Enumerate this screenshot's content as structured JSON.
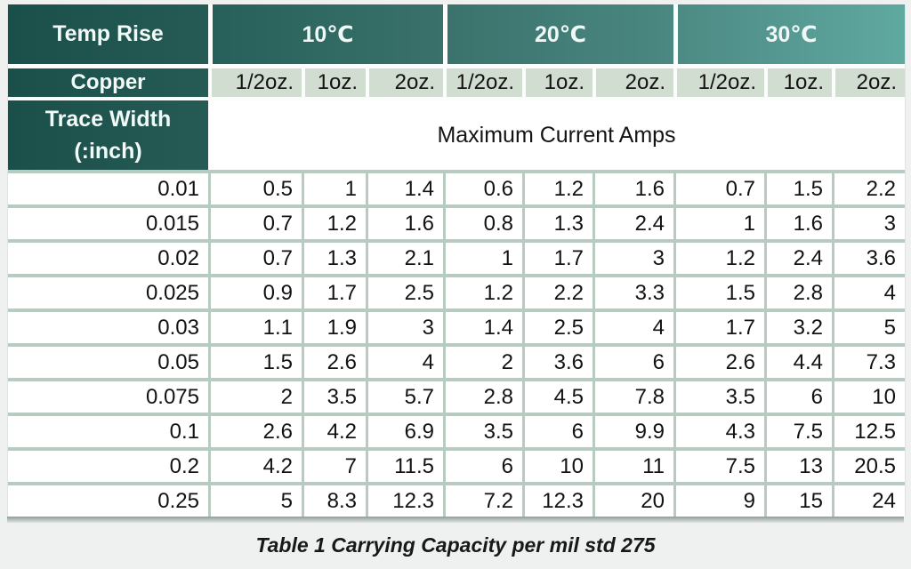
{
  "table": {
    "header": {
      "temp_rise_label": "Temp Rise",
      "temp_columns": [
        "10℃",
        "20℃",
        "30℃"
      ],
      "copper_label": "Copper",
      "copper_weights": [
        "1/2oz.",
        "1oz.",
        "2oz.",
        "1/2oz.",
        "1oz.",
        "2oz.",
        "1/2oz.",
        "1oz.",
        "2oz."
      ],
      "trace_width_label_line1": "Trace Width",
      "trace_width_label_line2": "(:inch)",
      "amps_header": "Maximum Current Amps"
    },
    "rows": [
      {
        "trace_width": "0.01",
        "values": [
          "0.5",
          "1",
          "1.4",
          "0.6",
          "1.2",
          "1.6",
          "0.7",
          "1.5",
          "2.2"
        ]
      },
      {
        "trace_width": "0.015",
        "values": [
          "0.7",
          "1.2",
          "1.6",
          "0.8",
          "1.3",
          "2.4",
          "1",
          "1.6",
          "3"
        ]
      },
      {
        "trace_width": "0.02",
        "values": [
          "0.7",
          "1.3",
          "2.1",
          "1",
          "1.7",
          "3",
          "1.2",
          "2.4",
          "3.6"
        ]
      },
      {
        "trace_width": "0.025",
        "values": [
          "0.9",
          "1.7",
          "2.5",
          "1.2",
          "2.2",
          "3.3",
          "1.5",
          "2.8",
          "4"
        ]
      },
      {
        "trace_width": "0.03",
        "values": [
          "1.1",
          "1.9",
          "3",
          "1.4",
          "2.5",
          "4",
          "1.7",
          "3.2",
          "5"
        ]
      },
      {
        "trace_width": "0.05",
        "values": [
          "1.5",
          "2.6",
          "4",
          "2",
          "3.6",
          "6",
          "2.6",
          "4.4",
          "7.3"
        ]
      },
      {
        "trace_width": "0.075",
        "values": [
          "2",
          "3.5",
          "5.7",
          "2.8",
          "4.5",
          "7.8",
          "3.5",
          "6",
          "10"
        ]
      },
      {
        "trace_width": "0.1",
        "values": [
          "2.6",
          "4.2",
          "6.9",
          "3.5",
          "6",
          "9.9",
          "4.3",
          "7.5",
          "12.5"
        ]
      },
      {
        "trace_width": "0.2",
        "values": [
          "4.2",
          "7",
          "11.5",
          "6",
          "10",
          "11",
          "7.5",
          "13",
          "20.5"
        ]
      },
      {
        "trace_width": "0.25",
        "values": [
          "5",
          "8.3",
          "12.3",
          "7.2",
          "12.3",
          "20",
          "9",
          "15",
          "24"
        ]
      }
    ],
    "caption": "Table 1 Carrying Capacity per mil std 275"
  },
  "colors": {
    "header_dark_teal": "#1d534e",
    "header_gradient_start": "#27605a",
    "header_gradient_end": "#5fa9a1",
    "copper_cell_bg": "#d1ddd1",
    "grid_border": "#b7cbc0",
    "cell_bg": "#ffffff",
    "text": "#121212"
  }
}
